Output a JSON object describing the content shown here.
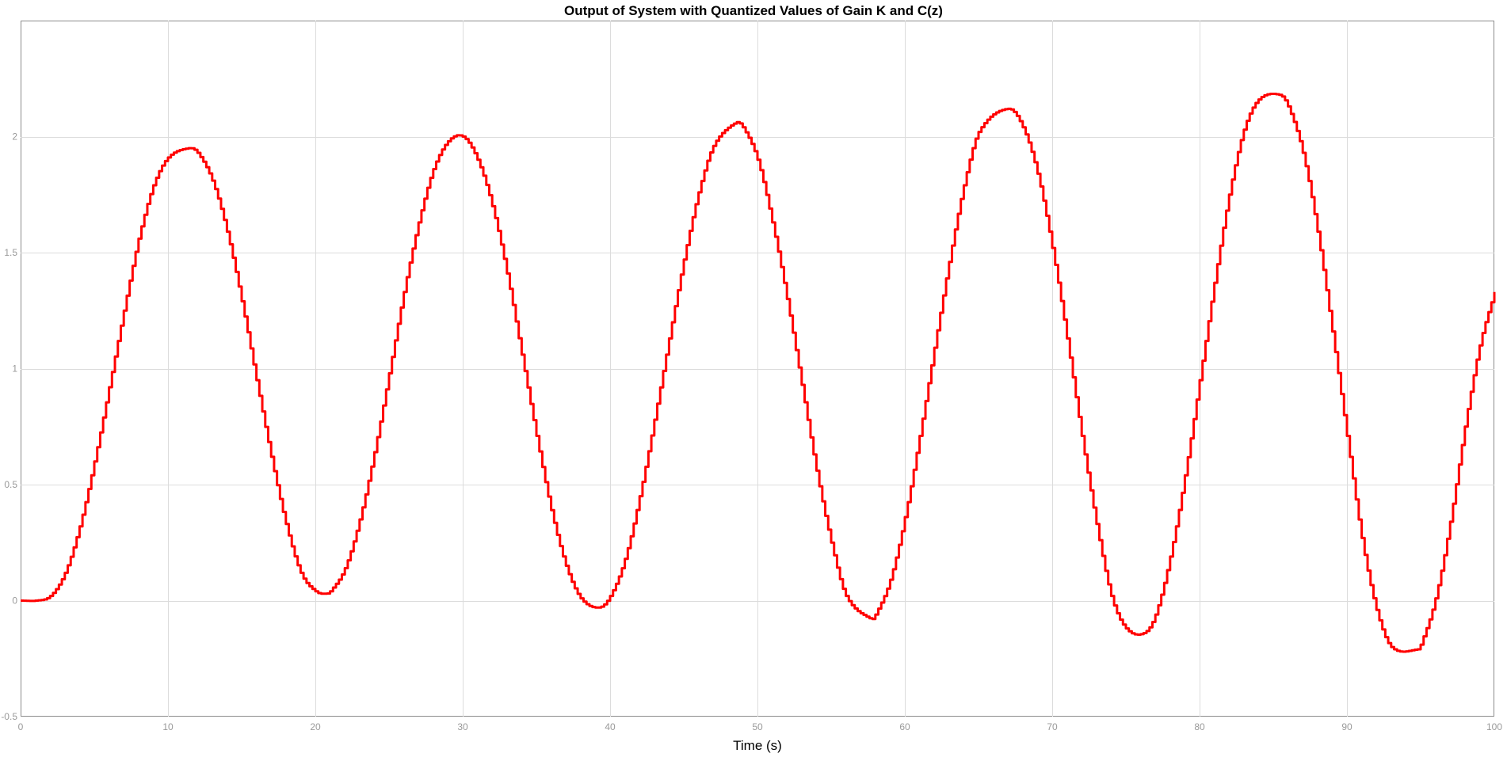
{
  "chart_data": {
    "type": "line",
    "title": "Output of System with Quantized Values of Gain K and C(z)",
    "xlabel": "Time (s)",
    "ylabel": "",
    "xlim": [
      0,
      100
    ],
    "ylim": [
      -0.5,
      2.5
    ],
    "xticks": [
      0,
      10,
      20,
      30,
      40,
      50,
      60,
      70,
      80,
      90,
      100
    ],
    "yticks": [
      -0.5,
      0,
      0.5,
      1,
      1.5,
      2
    ],
    "ytick_labels": [
      "-0.5",
      "0",
      "0.5",
      "1",
      "1.5",
      "2"
    ],
    "grid": true,
    "line_style": "staircase",
    "series": [
      {
        "color": "#ff0000",
        "x": [
          0,
          1,
          2,
          3,
          4,
          5,
          6,
          7,
          8,
          9,
          10,
          11.4,
          12,
          13,
          14,
          15,
          16,
          17,
          18,
          19,
          20,
          20.7,
          21,
          22,
          23,
          24,
          25,
          26,
          27,
          28,
          29,
          30,
          31,
          32,
          33,
          34,
          35,
          36,
          37,
          38,
          39.2,
          40,
          41,
          42,
          43,
          44,
          45,
          46,
          47,
          48.5,
          49,
          50,
          51,
          52,
          53,
          54,
          55,
          56,
          57.7,
          58,
          59,
          60,
          61,
          62,
          63,
          64,
          65,
          67,
          68,
          69,
          70,
          71,
          72,
          73,
          74,
          75,
          76.2,
          77,
          78,
          79,
          80,
          81,
          82,
          83,
          84,
          85.4,
          86,
          87,
          88,
          89,
          90,
          91,
          92,
          93,
          94.8,
          95,
          96,
          97,
          98,
          99,
          100
        ],
        "y": [
          0,
          0,
          0.02,
          0.12,
          0.32,
          0.6,
          0.92,
          1.25,
          1.56,
          1.79,
          1.91,
          1.95,
          1.93,
          1.81,
          1.59,
          1.29,
          0.95,
          0.62,
          0.33,
          0.12,
          0.04,
          0.03,
          0.04,
          0.14,
          0.35,
          0.64,
          0.98,
          1.33,
          1.63,
          1.86,
          1.98,
          2.0,
          1.9,
          1.7,
          1.41,
          1.06,
          0.71,
          0.39,
          0.15,
          0.01,
          -0.03,
          0.02,
          0.18,
          0.45,
          0.78,
          1.13,
          1.47,
          1.76,
          1.96,
          2.06,
          2.04,
          1.9,
          1.63,
          1.3,
          0.93,
          0.56,
          0.25,
          0.02,
          -0.08,
          -0.06,
          0.09,
          0.36,
          0.71,
          1.09,
          1.46,
          1.79,
          2.02,
          2.12,
          2.04,
          1.84,
          1.52,
          1.13,
          0.71,
          0.33,
          0.02,
          -0.12,
          -0.14,
          -0.06,
          0.19,
          0.54,
          0.95,
          1.37,
          1.75,
          2.03,
          2.16,
          2.18,
          2.13,
          1.93,
          1.59,
          1.16,
          0.71,
          0.27,
          -0.04,
          -0.2,
          -0.21,
          -0.19,
          0.01,
          0.34,
          0.75,
          1.1,
          1.33
        ]
      }
    ]
  }
}
